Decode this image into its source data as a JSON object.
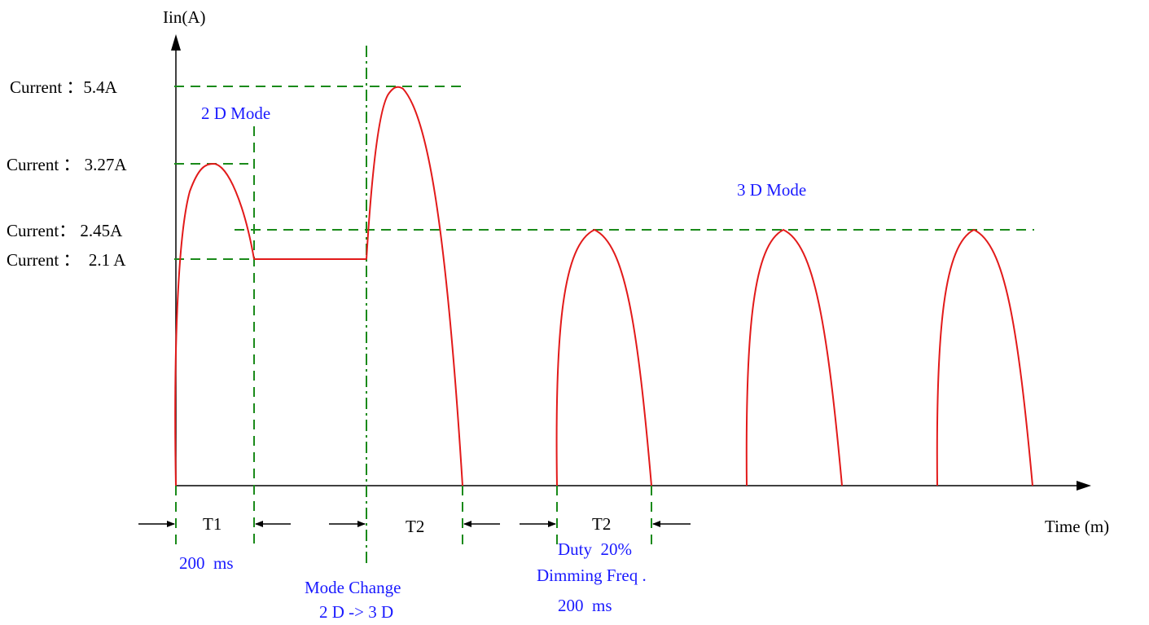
{
  "axes": {
    "y_label": "Iin(A)",
    "x_label": "Time (m)"
  },
  "current_levels": [
    {
      "label": "Current ：5.4A"
    },
    {
      "label": "Current ： 3.27A"
    },
    {
      "label": "Current： 2.45A"
    },
    {
      "label": "Current ：  2.1 A"
    }
  ],
  "modes": {
    "mode_2d": "2 D Mode",
    "mode_3d": "3 D Mode"
  },
  "intervals": {
    "t1": "T1",
    "t2_first": "T2",
    "t2_second": "T2"
  },
  "annotations": {
    "t1_duration": "200  ms",
    "mode_change_line1": "Mode Change",
    "mode_change_line2": "2 D -> 3 D",
    "duty": "Duty  20%",
    "dimming_freq": "Dimming Freq .",
    "dimming_period": "200  ms"
  },
  "colors": {
    "waveform": "#e21a1a",
    "guide_lines": "#1a8a1a",
    "mode_text": "#1a1aff",
    "axis": "#000000"
  }
}
